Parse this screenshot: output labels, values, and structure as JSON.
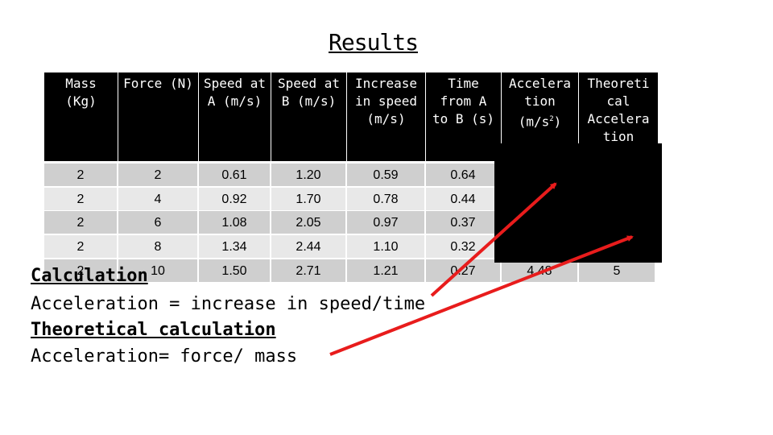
{
  "title": "Results",
  "headers": [
    "Mass\n(Kg)",
    "Force (N)",
    "Speed at\nA (m/s)",
    "Speed at\nB (m/s)",
    "Increase\nin speed\n(m/s)",
    "Time\nfrom A\nto B (s)",
    "Accelera\ntion\n(m/s",
    "Theoreti\ncal\nAccelera\ntion"
  ],
  "accel_sup": "2",
  "accel_close": ")",
  "rows": [
    [
      "2",
      "2",
      "0.61",
      "1.20",
      "0.59",
      "0.64",
      "",
      ""
    ],
    [
      "2",
      "4",
      "0.92",
      "1.70",
      "0.78",
      "0.44",
      "",
      ""
    ],
    [
      "2",
      "6",
      "1.08",
      "2.05",
      "0.97",
      "0.37",
      "",
      ""
    ],
    [
      "2",
      "8",
      "1.34",
      "2.44",
      "1.10",
      "0.32",
      "",
      ""
    ],
    [
      "2",
      "10",
      "1.50",
      "2.71",
      "1.21",
      "0.27",
      "4.48",
      "5"
    ]
  ],
  "calc": {
    "heading": "Calculation",
    "formula": "Acceleration = increase in speed/time",
    "theory_heading": "Theoretical calculation",
    "theory_formula": "Acceleration= force/ mass"
  },
  "colors": {
    "arrow": "#e81c1c",
    "header_bg": "#000000"
  }
}
